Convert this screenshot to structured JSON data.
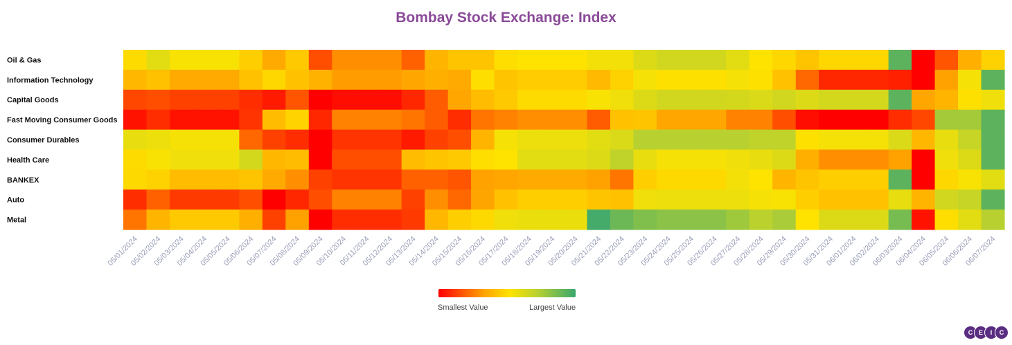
{
  "chart_data": {
    "type": "heatmap",
    "title": "Bombay Stock Exchange: Index",
    "x": [
      "05/01/2024",
      "05/02/2024",
      "05/03/2024",
      "05/04/2024",
      "05/05/2024",
      "05/06/2024",
      "05/07/2024",
      "05/08/2024",
      "05/09/2024",
      "05/10/2024",
      "05/11/2024",
      "05/12/2024",
      "05/13/2024",
      "05/14/2024",
      "05/15/2024",
      "05/16/2024",
      "05/17/2024",
      "05/18/2024",
      "05/19/2024",
      "05/20/2024",
      "05/21/2024",
      "05/22/2024",
      "05/23/2024",
      "05/24/2024",
      "05/25/2024",
      "05/26/2024",
      "05/27/2024",
      "05/28/2024",
      "05/29/2024",
      "05/30/2024",
      "05/31/2024",
      "06/01/2024",
      "06/02/2024",
      "06/03/2024",
      "06/04/2024",
      "06/05/2024",
      "06/06/2024",
      "06/07/2024"
    ],
    "y": [
      "Oil & Gas",
      "Information Technology",
      "Capital Goods",
      "Fast Moving Consumer Goods",
      "Consumer Durables",
      "Health Care",
      "BANKEX",
      "Auto",
      "Metal"
    ],
    "values": [
      [
        0.47,
        0.6,
        0.52,
        0.52,
        0.52,
        0.42,
        0.28,
        0.4,
        0.12,
        0.22,
        0.22,
        0.22,
        0.15,
        0.32,
        0.38,
        0.38,
        0.48,
        0.5,
        0.5,
        0.5,
        0.54,
        0.54,
        0.62,
        0.66,
        0.66,
        0.66,
        0.6,
        0.5,
        0.45,
        0.38,
        0.45,
        0.45,
        0.45,
        0.93,
        0.0,
        0.13,
        0.3,
        0.43
      ],
      [
        0.33,
        0.37,
        0.28,
        0.28,
        0.28,
        0.37,
        0.45,
        0.37,
        0.31,
        0.24,
        0.24,
        0.24,
        0.27,
        0.3,
        0.28,
        0.48,
        0.38,
        0.41,
        0.41,
        0.41,
        0.34,
        0.43,
        0.53,
        0.49,
        0.49,
        0.49,
        0.53,
        0.49,
        0.37,
        0.16,
        0.06,
        0.06,
        0.06,
        0.05,
        0.0,
        0.25,
        0.53,
        0.93
      ],
      [
        0.11,
        0.12,
        0.1,
        0.1,
        0.1,
        0.07,
        0.04,
        0.13,
        0.0,
        0.02,
        0.02,
        0.02,
        0.06,
        0.14,
        0.27,
        0.35,
        0.4,
        0.47,
        0.47,
        0.47,
        0.52,
        0.55,
        0.62,
        0.66,
        0.66,
        0.66,
        0.65,
        0.63,
        0.66,
        0.62,
        0.65,
        0.65,
        0.65,
        0.93,
        0.27,
        0.32,
        0.49,
        0.55
      ],
      [
        0.03,
        0.07,
        0.03,
        0.03,
        0.03,
        0.08,
        0.35,
        0.44,
        0.06,
        0.2,
        0.2,
        0.2,
        0.18,
        0.14,
        0.07,
        0.18,
        0.2,
        0.22,
        0.22,
        0.22,
        0.14,
        0.37,
        0.38,
        0.27,
        0.27,
        0.27,
        0.2,
        0.2,
        0.12,
        0.02,
        0.0,
        0.0,
        0.0,
        0.07,
        0.11,
        0.79,
        0.79,
        0.93
      ],
      [
        0.58,
        0.56,
        0.53,
        0.53,
        0.53,
        0.16,
        0.1,
        0.07,
        0.0,
        0.08,
        0.08,
        0.08,
        0.04,
        0.1,
        0.12,
        0.32,
        0.53,
        0.56,
        0.56,
        0.56,
        0.6,
        0.63,
        0.75,
        0.75,
        0.75,
        0.75,
        0.75,
        0.72,
        0.72,
        0.49,
        0.53,
        0.53,
        0.53,
        0.63,
        0.33,
        0.58,
        0.7,
        0.93
      ],
      [
        0.47,
        0.52,
        0.55,
        0.55,
        0.55,
        0.65,
        0.33,
        0.35,
        0.0,
        0.12,
        0.12,
        0.12,
        0.35,
        0.38,
        0.4,
        0.48,
        0.5,
        0.6,
        0.6,
        0.6,
        0.62,
        0.72,
        0.58,
        0.53,
        0.53,
        0.53,
        0.55,
        0.58,
        0.62,
        0.3,
        0.22,
        0.22,
        0.22,
        0.25,
        0.0,
        0.55,
        0.62,
        0.93
      ],
      [
        0.46,
        0.43,
        0.35,
        0.35,
        0.35,
        0.38,
        0.28,
        0.22,
        0.1,
        0.08,
        0.08,
        0.08,
        0.15,
        0.15,
        0.13,
        0.25,
        0.27,
        0.28,
        0.28,
        0.28,
        0.25,
        0.18,
        0.42,
        0.46,
        0.46,
        0.46,
        0.54,
        0.5,
        0.32,
        0.38,
        0.42,
        0.42,
        0.42,
        0.93,
        0.0,
        0.45,
        0.52,
        0.6
      ],
      [
        0.07,
        0.15,
        0.09,
        0.09,
        0.09,
        0.12,
        0.0,
        0.06,
        0.12,
        0.2,
        0.2,
        0.2,
        0.1,
        0.22,
        0.16,
        0.26,
        0.37,
        0.42,
        0.42,
        0.42,
        0.38,
        0.37,
        0.55,
        0.56,
        0.56,
        0.56,
        0.56,
        0.53,
        0.52,
        0.42,
        0.37,
        0.37,
        0.37,
        0.58,
        0.32,
        0.66,
        0.7,
        0.93
      ],
      [
        0.18,
        0.32,
        0.4,
        0.4,
        0.4,
        0.3,
        0.1,
        0.25,
        0.0,
        0.07,
        0.07,
        0.07,
        0.09,
        0.33,
        0.42,
        0.46,
        0.55,
        0.57,
        0.57,
        0.57,
        0.98,
        0.9,
        0.86,
        0.84,
        0.84,
        0.84,
        0.8,
        0.74,
        0.78,
        0.5,
        0.62,
        0.62,
        0.62,
        0.88,
        0.03,
        0.48,
        0.6,
        0.75
      ]
    ],
    "color_scale": [
      "#ff0000",
      "#ffa200",
      "#fee300",
      "#b8d130",
      "#3aa86f"
    ],
    "legend": {
      "min_label": "Smallest Value",
      "max_label": "Largest Value"
    }
  },
  "branding": {
    "logo_letters": [
      "C",
      "E",
      "I",
      "C"
    ]
  }
}
